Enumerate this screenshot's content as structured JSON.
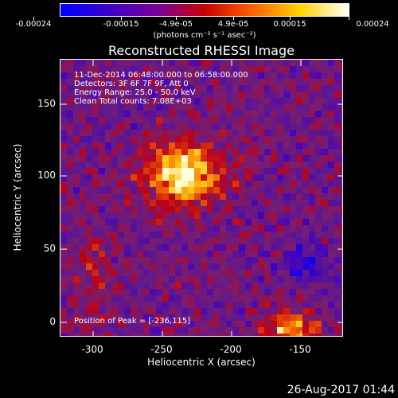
{
  "colorbar": {
    "labels": [
      "-0.00024",
      "-0.00015",
      "-4.9e-05",
      "4.9e-05",
      "0.00015",
      "0.00024"
    ],
    "units": "(photons cm⁻² s⁻¹ asec⁻²)",
    "colors": [
      "#0000ff",
      "#3c00c8",
      "#7800a0",
      "#c80000",
      "#ff6400",
      "#ffd200",
      "#ffffff"
    ]
  },
  "plot": {
    "title": "Reconstructed RHESSI Image",
    "info_lines": [
      "11-Dec-2014 06:48:00.000 to 06:58:00.000",
      "Detectors: 3F 6F 7F 9F, Att 0",
      "Energy Range: 25.0 - 50.0 keV",
      "Clean     Total counts: 7.08E+03"
    ],
    "peak_text": "Position of Peak = [-236,115]"
  },
  "axes": {
    "xlabel": "Heliocentric X (arcsec)",
    "ylabel": "Heliocentric Y (arcsec)",
    "xticks": [
      "-300",
      "-250",
      "-200",
      "-150"
    ],
    "yticks": [
      "150",
      "100",
      "50",
      "0"
    ]
  },
  "footer": {
    "date": "26-Aug-2017 01:44"
  }
}
